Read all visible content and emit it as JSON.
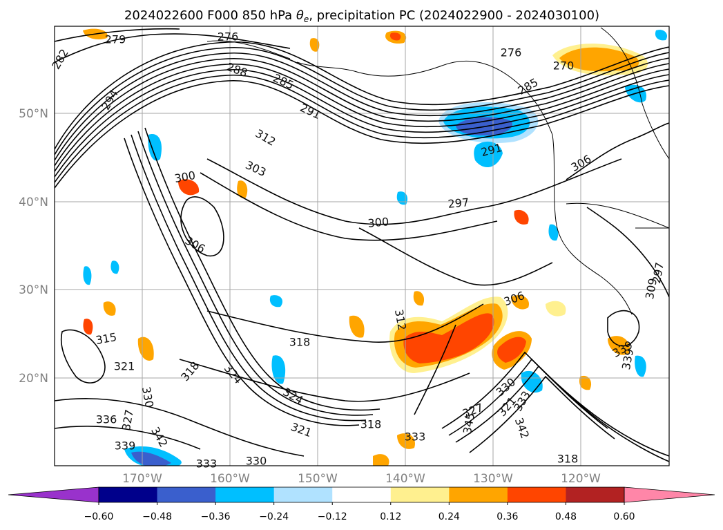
{
  "title_prefix": "2024022600 F000 850 hPa ",
  "title_symbol": "θ",
  "title_subscript": "e",
  "title_suffix": ", precipitation PC (2024022900 - 2024030100)",
  "lat_labels": [
    "50°N",
    "40°N",
    "30°N",
    "20°N"
  ],
  "lon_labels": [
    "170°W",
    "160°W",
    "150°W",
    "140°W",
    "130°W",
    "120°W"
  ],
  "colorbar": {
    "colors": [
      "#9932cc",
      "#00008b",
      "#3a5fcd",
      "#00bfff",
      "#b0e2ff",
      "#ffffff",
      "#fff08f",
      "#ffa500",
      "#ff4500",
      "#b22222",
      "#ff86a8"
    ],
    "tick_labels": [
      "−0.60",
      "−0.48",
      "−0.36",
      "−0.24",
      "−0.12",
      "0.12",
      "0.24",
      "0.36",
      "0.48",
      "0.60"
    ]
  },
  "contour_labels": [
    "279",
    "276",
    "282",
    "288",
    "285",
    "294",
    "276",
    "270",
    "285",
    "291",
    "312",
    "303",
    "300",
    "297",
    "291",
    "306",
    "300",
    "306",
    "297",
    "306",
    "312",
    "309",
    "318",
    "315",
    "321",
    "318",
    "324",
    "324",
    "318",
    "321",
    "327",
    "330",
    "327",
    "336",
    "339",
    "342",
    "333",
    "330",
    "333",
    "333",
    "321",
    "330",
    "342",
    "339",
    "345",
    "318",
    "339"
  ]
}
